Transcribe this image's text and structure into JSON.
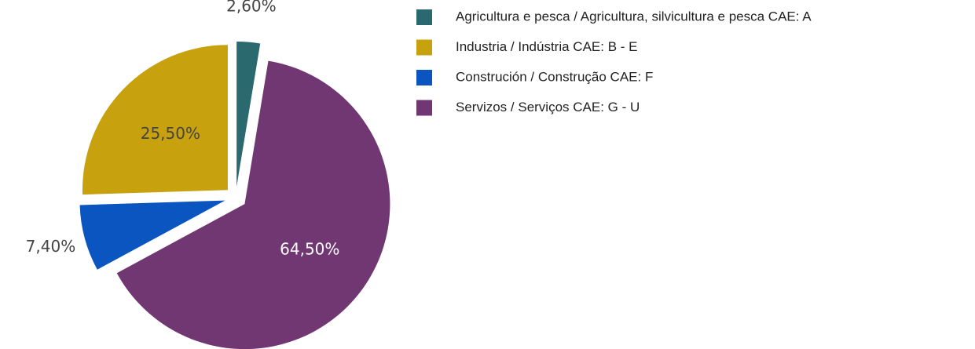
{
  "chart_data": {
    "type": "pie",
    "categories": [
      "Agricultura e pesca / Agricultura, silvicultura e pesca CAE: A",
      "Industria / Indústria CAE: B - E",
      "Construción / Construção CAE: F",
      "Servizos / Serviços CAE: G - U"
    ],
    "values": [
      2.6,
      25.5,
      7.4,
      64.5
    ],
    "value_labels": [
      "2,60%",
      "25,50%",
      "7,40%",
      "64,50%"
    ],
    "colors": [
      "#2a6a6e",
      "#c8a10f",
      "#0a55bf",
      "#713772"
    ]
  }
}
